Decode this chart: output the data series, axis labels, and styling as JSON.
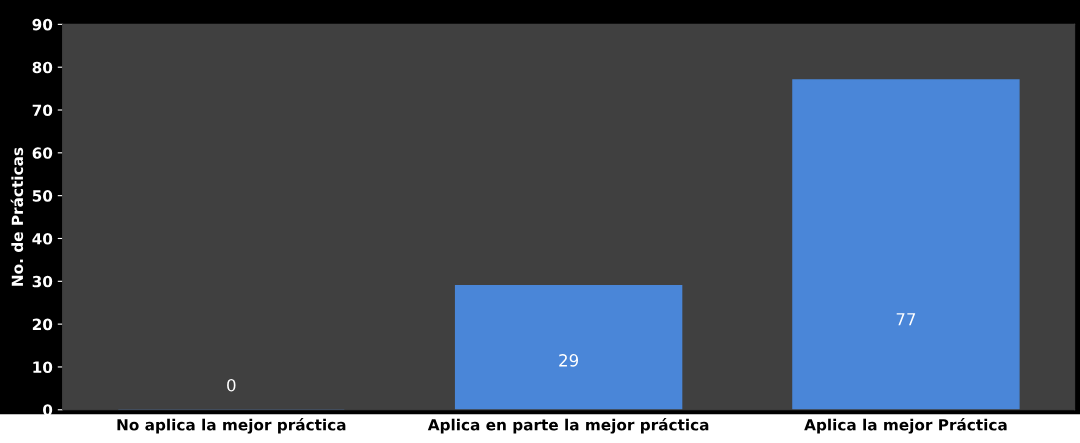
{
  "chart_data": {
    "type": "bar",
    "ylabel": "No. de Prácticas",
    "categories": [
      "No aplica la mejor práctica",
      "Aplica en parte la mejor práctica",
      "Aplica la mejor Práctica"
    ],
    "values": [
      0,
      29,
      77
    ],
    "color": "#4a86d8",
    "ylim": [
      0,
      90
    ],
    "yticks": [
      0,
      10,
      20,
      30,
      40,
      50,
      60,
      70,
      80,
      90
    ],
    "data_labels": true,
    "grid": false
  }
}
